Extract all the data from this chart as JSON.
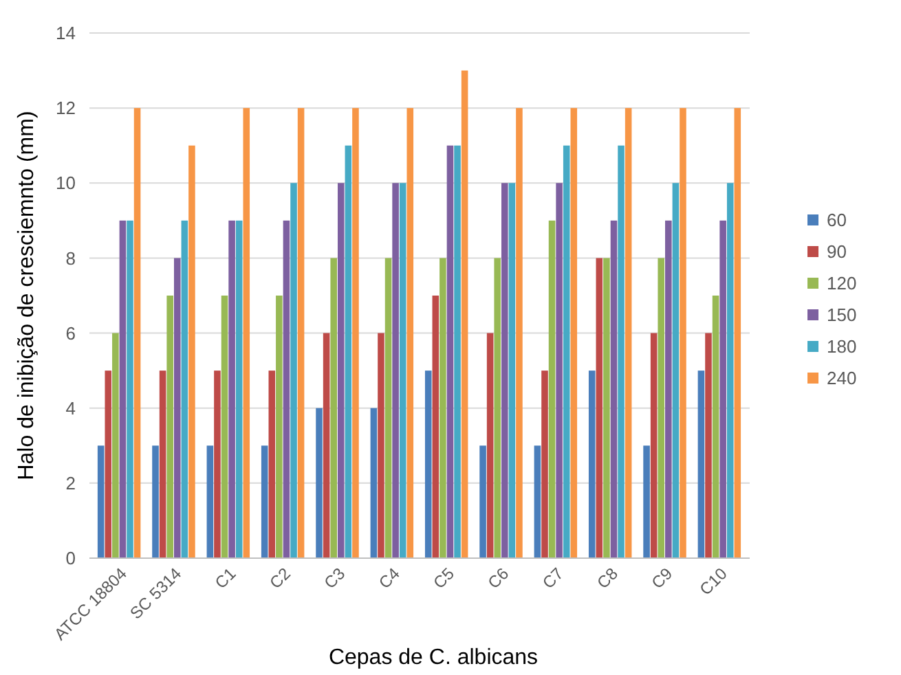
{
  "chart_data": {
    "type": "bar",
    "xlabel": "Cepas de C. albicans",
    "ylabel": "Halo de inibição de cresciemnto (mm)",
    "categories": [
      "ATCC 18804",
      "SC 5314",
      "C1",
      "C2",
      "C3",
      "C4",
      "C5",
      "C6",
      "C7",
      "C8",
      "C9",
      "C10"
    ],
    "series": [
      {
        "name": "60",
        "color": "#4a7ebb",
        "values": [
          3,
          3,
          3,
          3,
          4,
          4,
          5,
          3,
          3,
          5,
          3,
          5
        ]
      },
      {
        "name": "90",
        "color": "#be4b48",
        "values": [
          5,
          5,
          5,
          5,
          6,
          6,
          7,
          6,
          5,
          8,
          6,
          6
        ]
      },
      {
        "name": "120",
        "color": "#98b954",
        "values": [
          6,
          7,
          7,
          7,
          8,
          8,
          8,
          8,
          9,
          8,
          8,
          7
        ]
      },
      {
        "name": "150",
        "color": "#7d60a0",
        "values": [
          9,
          8,
          9,
          9,
          10,
          10,
          11,
          10,
          10,
          9,
          9,
          9
        ]
      },
      {
        "name": "180",
        "color": "#46aac5",
        "values": [
          9,
          9,
          9,
          10,
          11,
          10,
          11,
          10,
          11,
          11,
          10,
          10
        ]
      },
      {
        "name": "240",
        "color": "#f79646",
        "values": [
          12,
          11,
          12,
          12,
          12,
          12,
          13,
          12,
          12,
          12,
          12,
          12
        ]
      }
    ],
    "ylim": [
      0,
      14
    ],
    "yticks": [
      0,
      2,
      4,
      6,
      8,
      10,
      12,
      14
    ],
    "grid": "y",
    "legend": "right"
  }
}
